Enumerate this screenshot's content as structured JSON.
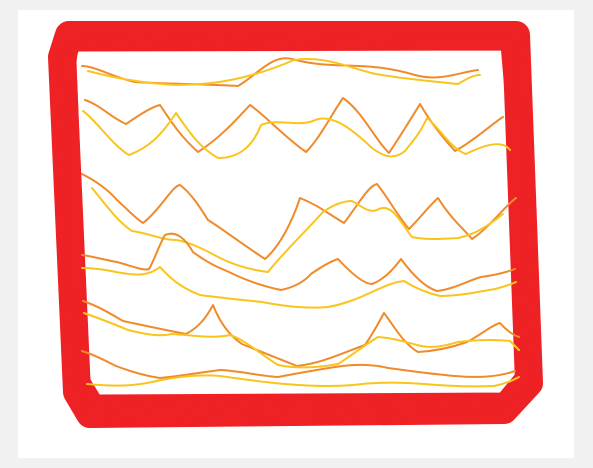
{
  "artwork": {
    "subject": "scribbled-wave-pattern",
    "colors": {
      "background": "#f1f1f1",
      "paper": "#ffffff",
      "frame": "#ee2124",
      "wave_orange": "#f08a2b",
      "wave_yellow": "#f9c51d"
    }
  }
}
